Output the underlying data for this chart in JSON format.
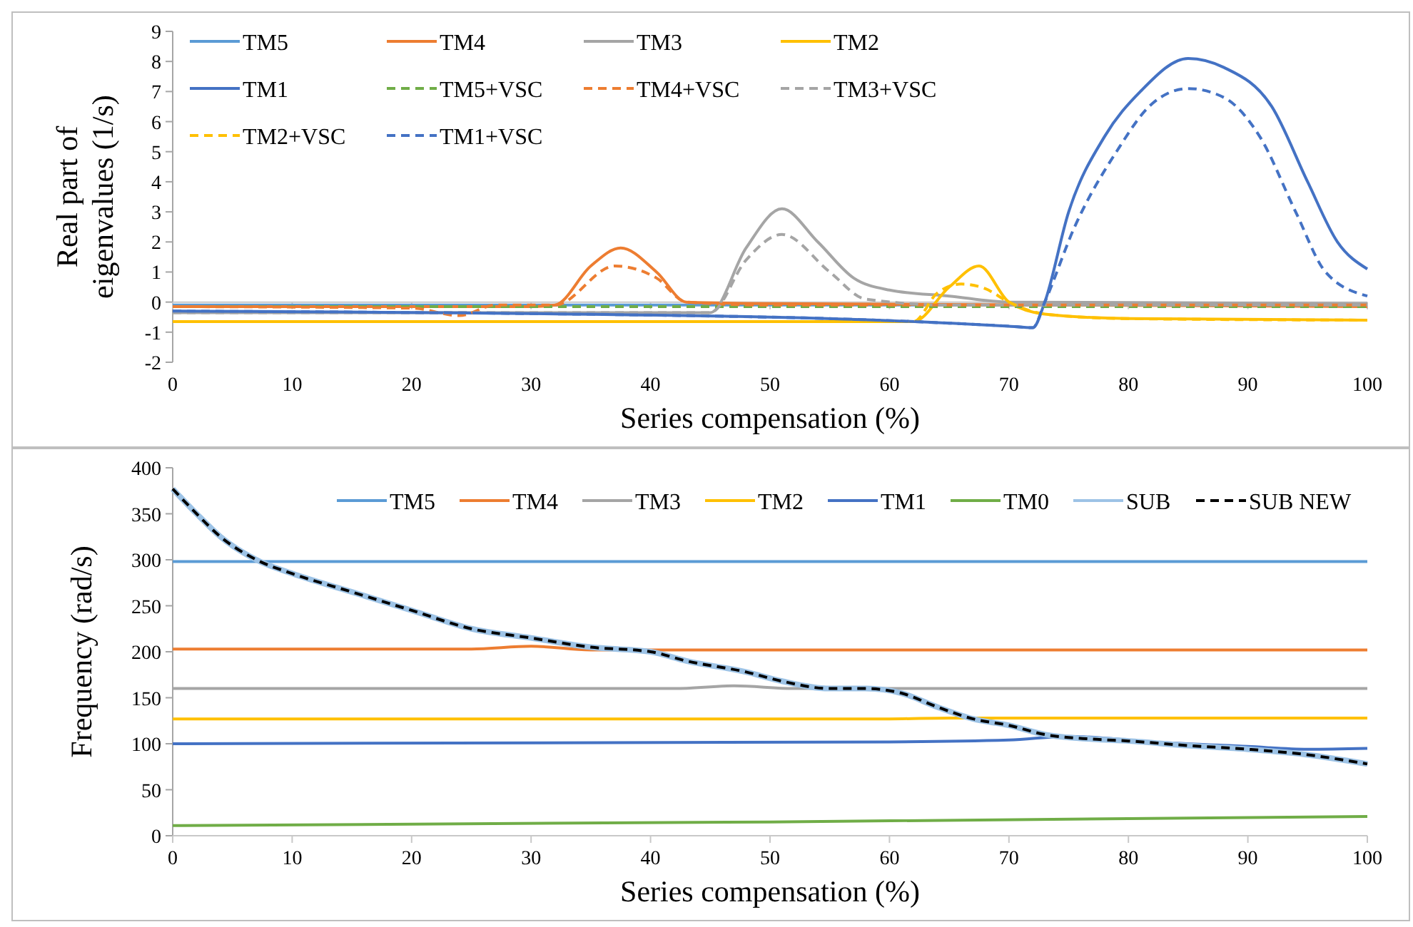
{
  "chart_data": [
    {
      "type": "line",
      "ylabel": "Real part of eigenvalues (1/s)",
      "xlabel": "Series compensation (%)",
      "xlim": [
        0,
        100
      ],
      "xticks": [
        0,
        10,
        20,
        30,
        40,
        50,
        60,
        70,
        80,
        90,
        100
      ],
      "ylim": [
        -2,
        9
      ],
      "yticks": [
        -2,
        -1,
        0,
        1,
        2,
        3,
        4,
        5,
        6,
        7,
        8,
        9
      ],
      "legend": "top",
      "series": [
        {
          "name": "TM5",
          "color": "#5b9bd5",
          "line_style": "solid",
          "x": [
            0,
            100
          ],
          "values": [
            -0.1,
            -0.1
          ]
        },
        {
          "name": "TM4",
          "color": "#ed7d31",
          "line_style": "solid",
          "x": [
            0,
            30,
            32,
            35,
            37.5,
            40.5,
            43,
            50,
            100
          ],
          "values": [
            -0.15,
            -0.15,
            -0.1,
            1.2,
            1.8,
            1,
            0,
            -0.05,
            -0.15
          ]
        },
        {
          "name": "TM3",
          "color": "#a5a5a5",
          "line_style": "solid",
          "x": [
            0,
            45,
            48,
            51,
            54,
            57,
            60,
            65,
            70,
            100
          ],
          "values": [
            -0.35,
            -0.35,
            1.8,
            3.1,
            2,
            0.8,
            0.4,
            0.2,
            0,
            -0.05
          ]
        },
        {
          "name": "TM2",
          "color": "#ffc000",
          "line_style": "solid",
          "x": [
            0,
            62,
            65,
            67.5,
            70,
            73,
            80,
            100
          ],
          "values": [
            -0.65,
            -0.65,
            0.5,
            1.2,
            0,
            -0.4,
            -0.55,
            -0.6
          ]
        },
        {
          "name": "TM1",
          "color": "#4472c4",
          "line_style": "solid",
          "x": [
            0,
            50,
            65,
            70,
            72,
            73,
            75,
            78,
            81,
            85,
            88,
            92,
            95,
            97.5,
            100
          ],
          "values": [
            -0.3,
            -0.5,
            -0.7,
            -0.8,
            -0.85,
            0,
            3,
            5.5,
            7,
            8.1,
            7.8,
            6.5,
            4,
            2,
            1.1
          ]
        },
        {
          "name": "TM5+VSC",
          "color": "#70ad47",
          "line_style": "dashed",
          "x": [
            0,
            100
          ],
          "values": [
            -0.15,
            -0.15
          ]
        },
        {
          "name": "TM4+VSC",
          "color": "#ed7d31",
          "line_style": "dashed",
          "x": [
            0,
            20,
            24,
            27,
            32,
            37,
            40.5,
            43,
            50,
            100
          ],
          "values": [
            -0.15,
            -0.2,
            -0.45,
            -0.1,
            -0.1,
            1.2,
            0.8,
            0,
            -0.1,
            -0.1
          ]
        },
        {
          "name": "TM3+VSC",
          "color": "#a5a5a5",
          "line_style": "dashed",
          "x": [
            0,
            45,
            48,
            51,
            55,
            58,
            65,
            100
          ],
          "values": [
            -0.35,
            -0.35,
            1.4,
            2.25,
            1,
            0.1,
            -0.1,
            -0.1
          ]
        },
        {
          "name": "TM2+VSC",
          "color": "#ffc000",
          "line_style": "dashed",
          "x": [
            0,
            62,
            64,
            66,
            68,
            70,
            73,
            80,
            100
          ],
          "values": [
            -0.65,
            -0.65,
            0.3,
            0.6,
            0.45,
            0,
            -0.4,
            -0.55,
            -0.6
          ]
        },
        {
          "name": "TM1+VSC",
          "color": "#4472c4",
          "line_style": "dashed",
          "x": [
            0,
            50,
            65,
            70,
            72,
            73,
            75.5,
            79,
            82,
            85,
            88,
            91,
            94,
            96.5,
            100
          ],
          "values": [
            -0.3,
            -0.5,
            -0.7,
            -0.8,
            -0.85,
            0,
            2.5,
            5,
            6.6,
            7.1,
            6.8,
            5.5,
            3,
            1,
            0.2
          ]
        }
      ]
    },
    {
      "type": "line",
      "ylabel": "Frequency (rad/s)",
      "xlabel": "Series compensation (%)",
      "xlim": [
        0,
        100
      ],
      "xticks": [
        0,
        10,
        20,
        30,
        40,
        50,
        60,
        70,
        80,
        90,
        100
      ],
      "ylim": [
        0,
        400
      ],
      "yticks": [
        0,
        50,
        100,
        150,
        200,
        250,
        300,
        350,
        400
      ],
      "legend": "top",
      "series": [
        {
          "name": "TM5",
          "color": "#5b9bd5",
          "line_style": "solid",
          "x": [
            0,
            100
          ],
          "values": [
            298,
            298
          ]
        },
        {
          "name": "TM4",
          "color": "#ed7d31",
          "line_style": "solid",
          "x": [
            0,
            25,
            30,
            35,
            100
          ],
          "values": [
            203,
            203,
            206,
            202,
            202
          ]
        },
        {
          "name": "TM3",
          "color": "#a5a5a5",
          "line_style": "solid",
          "x": [
            0,
            42,
            47,
            52,
            100
          ],
          "values": [
            160,
            160,
            163,
            160,
            160
          ]
        },
        {
          "name": "TM2",
          "color": "#ffc000",
          "line_style": "solid",
          "x": [
            0,
            60,
            65,
            100
          ],
          "values": [
            127,
            127,
            128,
            128
          ]
        },
        {
          "name": "TM1",
          "color": "#4472c4",
          "line_style": "solid",
          "x": [
            0,
            60,
            70,
            75,
            82,
            90,
            95,
            100
          ],
          "values": [
            100,
            102,
            104,
            108,
            102,
            97,
            94,
            95
          ]
        },
        {
          "name": "TM0",
          "color": "#70ad47",
          "line_style": "solid",
          "x": [
            0,
            50,
            100
          ],
          "values": [
            11,
            15,
            21
          ]
        },
        {
          "name": "SUB",
          "color": "#9dc3e6",
          "line_style": "solid",
          "x": [
            0,
            2,
            4,
            7,
            10,
            15,
            20,
            25,
            30,
            35,
            40,
            43,
            48,
            51,
            55,
            58,
            61,
            64,
            67,
            70,
            73,
            77,
            80,
            85,
            90,
            95,
            100
          ],
          "values": [
            377,
            350,
            325,
            300,
            285,
            265,
            245,
            225,
            215,
            205,
            200,
            190,
            178,
            168,
            160,
            160,
            155,
            140,
            127,
            120,
            110,
            105,
            103,
            98,
            94,
            88,
            78
          ]
        },
        {
          "name": "SUB NEW",
          "color": "#000000",
          "line_style": "dashed",
          "x": [
            0,
            2,
            4,
            7,
            10,
            15,
            20,
            25,
            30,
            35,
            40,
            43,
            48,
            51,
            55,
            58,
            61,
            64,
            67,
            70,
            73,
            77,
            80,
            85,
            90,
            95,
            100
          ],
          "values": [
            377,
            350,
            325,
            300,
            285,
            265,
            245,
            225,
            215,
            205,
            200,
            190,
            178,
            168,
            160,
            160,
            155,
            140,
            127,
            120,
            110,
            105,
            103,
            98,
            94,
            88,
            78
          ]
        }
      ]
    }
  ]
}
